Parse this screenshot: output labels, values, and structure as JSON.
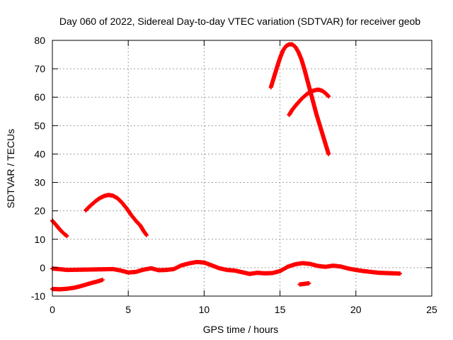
{
  "chart_data": {
    "type": "scatter",
    "title": "Day 060 of 2022, Sidereal Day-to-day VTEC variation (SDTVAR) for receiver geob",
    "xlabel": "GPS time / hours",
    "ylabel": "SDTVAR / TECUs",
    "xlim": [
      0,
      25
    ],
    "ylim": [
      -10,
      80
    ],
    "xticks": [
      "0",
      "5",
      "10",
      "15",
      "20",
      "25"
    ],
    "yticks": [
      "-10",
      "0",
      "10",
      "20",
      "30",
      "40",
      "50",
      "60",
      "70",
      "80"
    ],
    "grid": true,
    "series_color": "#ff0000",
    "series": [
      {
        "x": [
          0.0,
          0.2,
          0.4,
          0.6,
          0.8,
          0.95
        ],
        "y": [
          16.5,
          15.3,
          14.0,
          12.8,
          11.8,
          11.2
        ]
      },
      {
        "x": [
          0.0,
          0.5,
          1.0,
          1.5,
          2.0,
          2.5,
          3.0,
          3.3
        ],
        "y": [
          -7.5,
          -7.6,
          -7.4,
          -7.0,
          -6.3,
          -5.5,
          -4.8,
          -4.3
        ]
      },
      {
        "x": [
          2.2,
          2.5,
          2.8,
          3.1,
          3.4,
          3.7,
          4.0,
          4.3,
          4.6,
          4.9,
          5.2,
          5.5,
          5.8,
          6.0,
          6.2
        ],
        "y": [
          20.2,
          21.8,
          23.2,
          24.4,
          25.2,
          25.6,
          25.3,
          24.4,
          22.8,
          20.8,
          18.5,
          16.5,
          14.8,
          13.0,
          11.5
        ]
      },
      {
        "x": [
          0.0,
          1.0,
          2.0,
          3.0,
          4.0,
          4.5,
          5.0,
          5.5,
          6.0,
          6.5,
          7.0,
          7.5,
          8.0,
          8.5,
          9.0,
          9.5,
          10.0,
          10.5,
          11.0,
          11.5,
          12.0,
          12.5,
          13.0,
          13.5,
          14.0,
          14.5,
          15.0,
          15.5,
          16.0,
          16.5,
          17.0,
          17.5,
          18.0,
          18.5,
          19.0,
          19.5,
          20.0,
          20.5,
          21.0,
          21.5,
          22.0,
          22.5,
          22.9
        ],
        "y": [
          -0.3,
          -0.8,
          -0.7,
          -0.6,
          -0.5,
          -1.0,
          -1.7,
          -1.5,
          -0.7,
          -0.2,
          -0.9,
          -0.8,
          -0.5,
          0.8,
          1.5,
          2.0,
          1.8,
          0.8,
          -0.2,
          -0.8,
          -1.0,
          -1.6,
          -2.2,
          -1.8,
          -2.0,
          -1.9,
          -1.2,
          0.3,
          1.2,
          1.6,
          1.3,
          0.6,
          0.3,
          0.7,
          0.4,
          -0.3,
          -0.8,
          -1.2,
          -1.5,
          -1.8,
          -1.9,
          -2.0,
          -2.1
        ]
      },
      {
        "x": [
          16.3,
          16.6,
          16.9
        ],
        "y": [
          -5.9,
          -5.7,
          -5.5
        ]
      },
      {
        "x": [
          14.4,
          14.6,
          14.8,
          15.0,
          15.2,
          15.4,
          15.6,
          15.8,
          16.0,
          16.2,
          16.4,
          16.6,
          16.8,
          17.0,
          17.2,
          17.4,
          17.6,
          17.8,
          18.0,
          18.2
        ],
        "y": [
          63.5,
          67.0,
          70.5,
          73.8,
          76.5,
          78.0,
          78.6,
          78.6,
          77.8,
          76.0,
          73.5,
          70.0,
          66.0,
          62.0,
          58.0,
          54.0,
          50.5,
          47.0,
          43.5,
          40.0
        ]
      },
      {
        "x": [
          15.6,
          15.8,
          16.0,
          16.2,
          16.4,
          16.6,
          16.8,
          17.0,
          17.2,
          17.4,
          17.6,
          17.8,
          18.0,
          18.2
        ],
        "y": [
          53.8,
          55.5,
          56.9,
          58.1,
          59.3,
          60.3,
          61.2,
          61.9,
          62.3,
          62.6,
          62.6,
          62.2,
          61.4,
          60.3
        ]
      }
    ]
  }
}
